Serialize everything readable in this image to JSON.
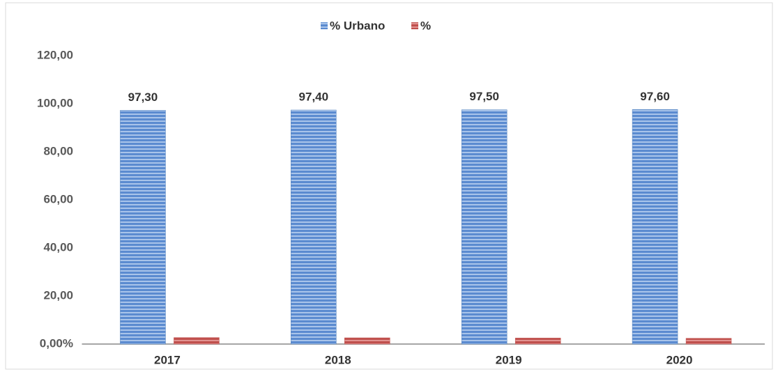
{
  "chart_data": {
    "type": "bar",
    "categories": [
      "2017",
      "2018",
      "2019",
      "2020"
    ],
    "series": [
      {
        "name": "% Urbano",
        "color": "#4f81bd",
        "values": [
          97.3,
          97.4,
          97.5,
          97.6
        ],
        "value_labels": [
          "97,30",
          "97,40",
          "97,50",
          "97,60"
        ]
      },
      {
        "name": "%",
        "color": "#c0504d",
        "values": [
          2.7,
          2.6,
          2.5,
          2.4
        ]
      }
    ],
    "ylim": [
      0,
      120
    ],
    "yticks": [
      {
        "value": 0,
        "label": "0,00%"
      },
      {
        "value": 20,
        "label": "20,00"
      },
      {
        "value": 40,
        "label": "40,00"
      },
      {
        "value": 60,
        "label": "60,00"
      },
      {
        "value": 80,
        "label": "80,00"
      },
      {
        "value": 100,
        "label": "100,00"
      },
      {
        "value": 120,
        "label": "120,00"
      }
    ],
    "legend": "top"
  }
}
